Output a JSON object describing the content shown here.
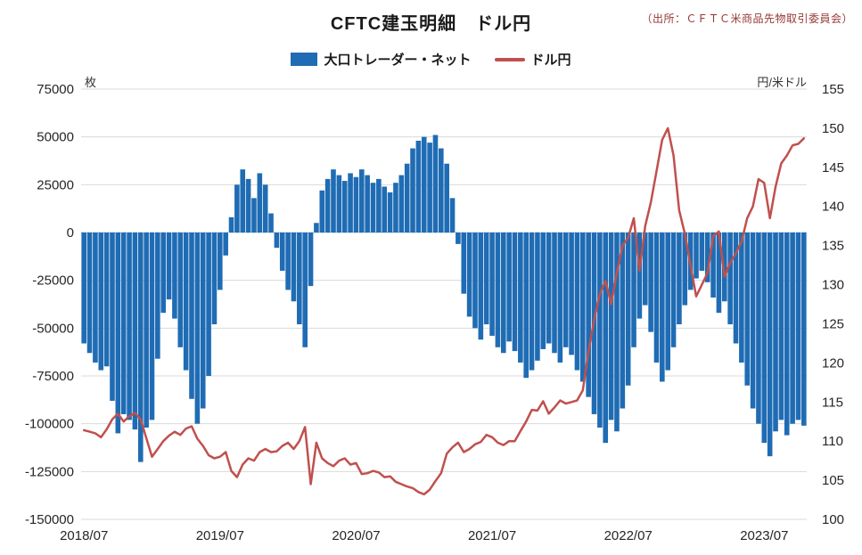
{
  "header": {
    "title": "CFTC建玉明細　ドル円",
    "source_note": "（出所：ＣＦＴＣ米商品先物取引委員会）"
  },
  "legend": [
    {
      "label": "大口トレーダー・ネット",
      "swatch": "bar",
      "color": "#1f6cb4"
    },
    {
      "label": "ドル円",
      "swatch": "line",
      "color": "#c0504d"
    }
  ],
  "chart_data": {
    "type": "combo (bar + line, dual axis)",
    "title": "CFTC建玉明細　ドル円",
    "grid": "horizontal",
    "x_ticks": [
      {
        "index": 0,
        "label": "2018/07"
      },
      {
        "index": 24,
        "label": "2019/07"
      },
      {
        "index": 48,
        "label": "2020/07"
      },
      {
        "index": 72,
        "label": "2021/07"
      },
      {
        "index": 96,
        "label": "2022/07"
      },
      {
        "index": 120,
        "label": "2023/07"
      }
    ],
    "x_resolution": "semi-monthly points from 2018/07 to 2023/10",
    "left_axis": {
      "unit": "枚",
      "min": -150000,
      "max": 75000,
      "step": 25000
    },
    "right_axis": {
      "unit": "円/米ドル",
      "min": 100,
      "max": 155,
      "step": 5
    },
    "series": [
      {
        "name": "大口トレーダー・ネット",
        "type": "bar",
        "axis": "left",
        "color": "#1f6cb4",
        "values": [
          -58000,
          -63000,
          -68000,
          -72000,
          -70000,
          -88000,
          -105000,
          -95000,
          -98000,
          -103000,
          -120000,
          -102000,
          -98000,
          -66000,
          -42000,
          -35000,
          -45000,
          -60000,
          -72000,
          -87000,
          -100000,
          -92000,
          -75000,
          -48000,
          -30000,
          -12000,
          8000,
          25000,
          33000,
          28000,
          18000,
          31000,
          25000,
          10000,
          -8000,
          -20000,
          -30000,
          -36000,
          -48000,
          -60000,
          -28000,
          5000,
          22000,
          28000,
          33000,
          30000,
          27000,
          31000,
          29000,
          33000,
          30000,
          26000,
          28000,
          24000,
          21000,
          26000,
          30000,
          36000,
          44000,
          48000,
          50000,
          47000,
          51000,
          44000,
          36000,
          18000,
          -6000,
          -32000,
          -44000,
          -50000,
          -56000,
          -48000,
          -54000,
          -60000,
          -63000,
          -57000,
          -62000,
          -68000,
          -76000,
          -72000,
          -67000,
          -61000,
          -58000,
          -63000,
          -68000,
          -60000,
          -64000,
          -72000,
          -78000,
          -86000,
          -95000,
          -102000,
          -110000,
          -98000,
          -104000,
          -92000,
          -80000,
          -60000,
          -45000,
          -38000,
          -52000,
          -68000,
          -78000,
          -72000,
          -60000,
          -48000,
          -38000,
          -30000,
          -24000,
          -20000,
          -26000,
          -34000,
          -42000,
          -36000,
          -48000,
          -58000,
          -68000,
          -80000,
          -92000,
          -100000,
          -110000,
          -117000,
          -104000,
          -98000,
          -106000,
          -100000,
          -98000,
          -101000
        ]
      },
      {
        "name": "ドル円",
        "type": "line",
        "axis": "right",
        "color": "#c0504d",
        "values": [
          111.4,
          111.2,
          111.0,
          110.5,
          111.5,
          112.8,
          113.5,
          112.5,
          113.2,
          113.6,
          112.8,
          110.4,
          108.0,
          109.0,
          110.0,
          110.7,
          111.2,
          110.8,
          111.6,
          111.9,
          110.3,
          109.4,
          108.2,
          107.8,
          108.0,
          108.6,
          106.2,
          105.4,
          107.0,
          107.8,
          107.5,
          108.6,
          109.0,
          108.6,
          108.7,
          109.4,
          109.8,
          109.0,
          110.0,
          111.8,
          104.5,
          109.8,
          107.8,
          107.2,
          106.8,
          107.5,
          107.8,
          107.0,
          107.2,
          105.8,
          105.9,
          106.2,
          106.0,
          105.4,
          105.5,
          104.8,
          104.5,
          104.2,
          104.0,
          103.5,
          103.2,
          103.8,
          104.9,
          105.9,
          108.4,
          109.2,
          109.8,
          108.6,
          109.0,
          109.6,
          109.9,
          110.8,
          110.5,
          109.8,
          109.5,
          110.0,
          110.0,
          111.3,
          112.5,
          114.0,
          113.9,
          115.1,
          113.5,
          114.3,
          115.2,
          114.8,
          115.0,
          115.2,
          116.5,
          121.5,
          125.5,
          128.8,
          130.5,
          127.5,
          131.5,
          135.0,
          136.0,
          138.5,
          131.8,
          137.5,
          140.5,
          144.5,
          148.5,
          150.0,
          146.5,
          139.5,
          136.5,
          132.5,
          128.5,
          130.0,
          131.5,
          136.2,
          136.8,
          131.0,
          132.8,
          134.0,
          135.5,
          138.5,
          140.0,
          143.5,
          143.0,
          138.5,
          142.5,
          145.5,
          146.5,
          147.8,
          148.0,
          148.7
        ]
      }
    ],
    "colors": {
      "bar": "#1f6cb4",
      "line": "#c0504d",
      "grid": "#d9d9d9",
      "zero_line": "#9dc3e6",
      "tick_text": "#262626"
    }
  }
}
